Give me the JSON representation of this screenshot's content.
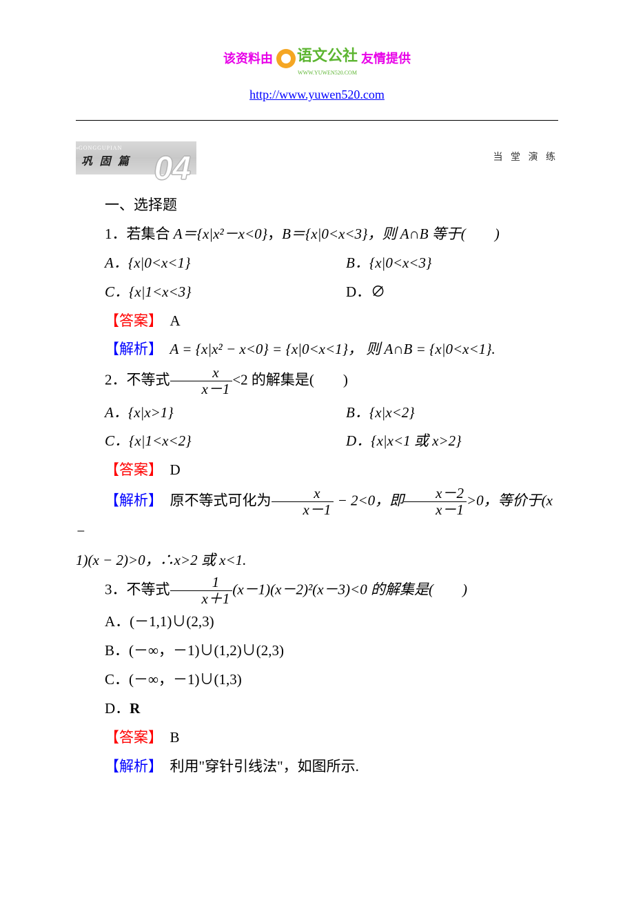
{
  "header": {
    "prefix": "该资料由",
    "logo_text": "语文公社",
    "logo_sub": "WWW.YUWEN520.COM",
    "suffix": "友情提供",
    "url": "http://www.yuwen520.com",
    "text_color": "#e800e8",
    "url_color": "#0000ff"
  },
  "section_badge": {
    "pinyin": "GONGGUPIAN",
    "label": "巩 固 篇",
    "number": "04",
    "right_label": "当 堂 演 练"
  },
  "labels": {
    "answer": "【答案】",
    "explain": "【解析】",
    "answer_color": "#ff0000",
    "explain_color": "#0000ff"
  },
  "heading": "一、选择题",
  "q1": {
    "stem_pre": "1．若集合 ",
    "stem_A": "A＝{x|x²－x<0}",
    "stem_mid": "，",
    "stem_B": "B＝{x|0<x<3}",
    "stem_post": "，则 A∩B 等于(　　)",
    "optA": "A．{x|0<x<1}",
    "optB": "B．{x|0<x<3}",
    "optC": "C．{x|1<x<3}",
    "optD": "D．∅",
    "answer": "A",
    "explain": "A = {x|x² − x<0} = {x|0<x<1}， 则 A∩B = {x|0<x<1}."
  },
  "q2": {
    "stem_pre": "2．不等式",
    "frac_num": "x",
    "frac_den": "x－1",
    "stem_post": "<2 的解集是(　　)",
    "optA": "A．{x|x>1}",
    "optB": "B．{x|x<2}",
    "optC": "C．{x|1<x<2}",
    "optD": "D．{x|x<1 或 x>2}",
    "answer": "D",
    "exp_pre": "原不等式可化为",
    "exp_f1n": "x",
    "exp_f1d": "x－1",
    "exp_mid1": " − 2<0，即",
    "exp_f2n": "x－2",
    "exp_f2d": "x－1",
    "exp_mid2": ">0，等价于(x −",
    "exp_line2": "1)(x − 2)>0，∴x>2 或 x<1."
  },
  "q3": {
    "stem_pre": "3．不等式",
    "frac_num": "1",
    "frac_den": "x＋1",
    "stem_post": "(x－1)(x－2)²(x－3)<0 的解集是(　　)",
    "optA": "A．(－1,1)∪(2,3)",
    "optB": "B．(－∞，－1)∪(1,2)∪(2,3)",
    "optC": "C．(－∞，－1)∪(1,3)",
    "optD_pre": "D．",
    "optD_bold": "R",
    "answer": "B",
    "explain": "利用\"穿针引线法\"，如图所示."
  }
}
